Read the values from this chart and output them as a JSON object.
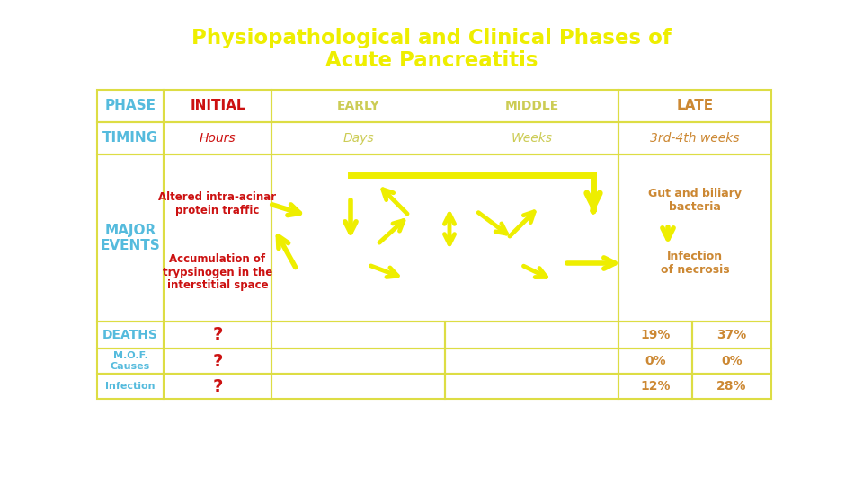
{
  "title_line1": "Physiopathological and Clinical Phases of",
  "title_line2": "Acute Pancreatitis",
  "title_color": "#EEEE00",
  "bg_color": "#FFFFFF",
  "border_color": "#DDDD44",
  "arrow_color": "#EEEE00",
  "label_color": "#55BBDD",
  "initial_color": "#CC1111",
  "early_middle_color": "#CCCC55",
  "late_color": "#CC8833",
  "events_left_color": "#CC1111",
  "events_right_color": "#CC8833",
  "phase_labels": [
    "PHASE",
    "INITIAL",
    "EARLY",
    "MIDDLE",
    "LATE"
  ],
  "timing_labels": [
    "TIMING",
    "Hours",
    "Days",
    "Weeks",
    "3rd-4th weeks"
  ],
  "deaths_label": "DEATHS",
  "mof_label": "M.O.F.\nCauses",
  "infection_label": "Infection",
  "deaths_q": "?",
  "deaths_values": [
    "19%",
    "37%"
  ],
  "mof_q": "?",
  "mof_values": [
    "0%",
    "0%"
  ],
  "infect_q": "?",
  "infect_values": [
    "12%",
    "28%"
  ],
  "events_left_text1": "Altered intra-acinar\nprotein traffic",
  "events_left_text2": "Accumulation of\ntrypsinogen in the\ninterstitial space",
  "events_right_text1": "Gut and biliary\nbacteria",
  "events_right_text2": "Infection\nof necrosis"
}
